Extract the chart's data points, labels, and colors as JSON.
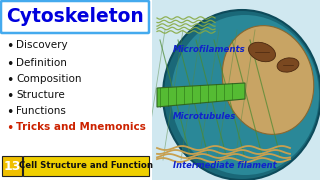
{
  "title": "Cytoskeleton",
  "title_color": "#0000dd",
  "title_box_edgecolor": "#44aaee",
  "bg_color": "#ffffff",
  "bullet_items": [
    "Discovery",
    "Definition",
    "Composition",
    "Structure",
    "Functions"
  ],
  "bullet_color": "#111111",
  "special_bullet": "Tricks and Mnemonics",
  "special_bullet_color": "#cc2200",
  "badge_number": "13",
  "badge_bg": "#f0c000",
  "badge_number_color": "#ffffff",
  "badge_label": "Cell Structure and Function",
  "badge_label_bg": "#f0d000",
  "badge_label_color": "#111111",
  "labels": [
    "Microfilaments",
    "Microtubules",
    "Intermediate filament"
  ],
  "label_color": "#1122cc",
  "right_bg": "#d0e8f0",
  "cell_outer_color": "#5aabcc",
  "cell_inner_color": "#2288aa",
  "nucleus_color": "#c8a878",
  "microfilament_color": "#88aa44",
  "microtubule_color": "#44aa33",
  "intermediate_color": "#c8a050"
}
